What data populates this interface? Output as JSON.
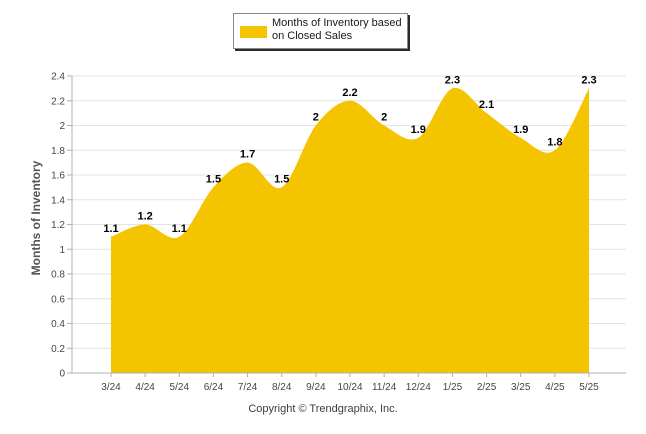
{
  "chart_data": {
    "type": "area",
    "categories": [
      "3/24",
      "4/24",
      "5/24",
      "6/24",
      "7/24",
      "8/24",
      "9/24",
      "10/24",
      "11/24",
      "12/24",
      "1/25",
      "2/25",
      "3/25",
      "4/25",
      "5/25"
    ],
    "series": [
      {
        "name": "Months of Inventory based on Closed Sales",
        "values": [
          1.1,
          1.2,
          1.1,
          1.5,
          1.7,
          1.5,
          2,
          2.2,
          2,
          1.9,
          2.3,
          2.1,
          1.9,
          1.8,
          2.3
        ],
        "data_labels": [
          "1.1",
          "1.2",
          "1.1",
          "1.5",
          "1.7",
          "1.5",
          "2",
          "2.2",
          "2",
          "1.9",
          "2.3",
          "2.1",
          "1.9",
          "1.8",
          "2.3"
        ],
        "color": "#f5c400"
      }
    ],
    "ylabel": "Months of Inventory",
    "ylim": [
      0,
      2.4
    ],
    "yticks": [
      "0",
      "0.2",
      "0.4",
      "0.6",
      "0.8",
      "1",
      "1.2",
      "1.4",
      "1.6",
      "1.8",
      "2",
      "2.2",
      "2.4"
    ],
    "grid": true,
    "legend_position": "top"
  },
  "colors": {
    "area": "#f5c400",
    "grid": "#e3e3e3",
    "axis": "#b0b0b0"
  },
  "footer": {
    "copyright": "Copyright © Trendgraphix, Inc."
  }
}
